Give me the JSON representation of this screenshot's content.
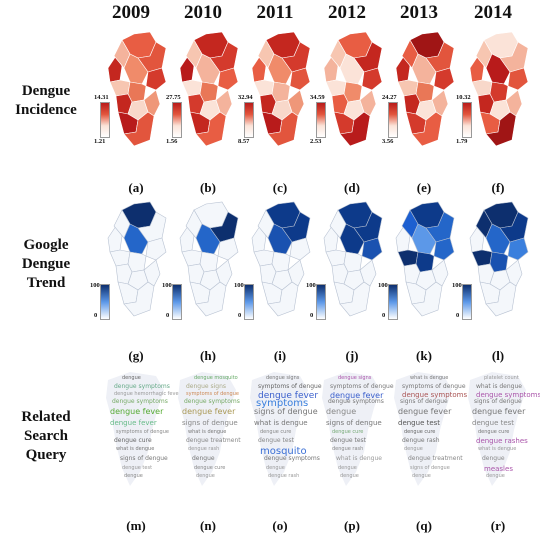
{
  "years": [
    "2009",
    "2010",
    "2011",
    "2012",
    "2013",
    "2014"
  ],
  "row_labels": [
    "Dengue\nIncidence",
    "Google\nDengue\nTrend",
    "Related\nSearch\nQuery"
  ],
  "panel_letters": [
    [
      "(a)",
      "(b)",
      "(c)",
      "(d)",
      "(e)",
      "(f)"
    ],
    [
      "(g)",
      "(h)",
      "(i)",
      "(j)",
      "(k)",
      "(l)"
    ],
    [
      "(m)",
      "(n)",
      "(o)",
      "(p)",
      "(q)",
      "(r)"
    ]
  ],
  "incidence_scales": [
    {
      "max": "14.31",
      "min": "1.21"
    },
    {
      "max": "27.75",
      "min": "1.56"
    },
    {
      "max": "32.94",
      "min": "8.57"
    },
    {
      "max": "34.59",
      "min": "2.53"
    },
    {
      "max": "24.27",
      "min": "3.56"
    },
    {
      "max": "10.32",
      "min": "1.79"
    }
  ],
  "trend_scale": {
    "max": "100",
    "min": "0"
  },
  "colors": {
    "red_dark": "#b81b1b",
    "red_mid": "#e2553d",
    "red_light": "#f4b39c",
    "red_pale": "#fbe3d8",
    "blue_dark": "#0d2f6e",
    "blue_mid": "#2466c9",
    "blue_light": "#5c98e8",
    "blue_pale": "#f4f7fb"
  },
  "incidence_fills": [
    [
      "#c4271f",
      "#e85d43",
      "#f4b39c",
      "#e2553d",
      "#f08b6a",
      "#d43a2c",
      "#f7c6b1",
      "#e97757",
      "#c4271f",
      "#f8d8ca",
      "#b81b1b",
      "#ef9779",
      "#e2553d"
    ],
    [
      "#b81b1b",
      "#c4271f",
      "#f7c6b1",
      "#d43a2c",
      "#f4b39c",
      "#e85d43",
      "#fbe3d8",
      "#e97757",
      "#d43a2c",
      "#fbe3d8",
      "#c4271f",
      "#f4b39c",
      "#e85d43"
    ],
    [
      "#e85d43",
      "#c4271f",
      "#f7c6b1",
      "#d43a2c",
      "#f08b6a",
      "#e2553d",
      "#fbe3d8",
      "#f4b39c",
      "#c4271f",
      "#f8d8ca",
      "#b81b1b",
      "#ef9779",
      "#e2553d"
    ],
    [
      "#f4b39c",
      "#e85d43",
      "#f7c6b1",
      "#c4271f",
      "#fbe3d8",
      "#d43a2c",
      "#fbe3d8",
      "#f08b6a",
      "#e85d43",
      "#fbe3d8",
      "#d43a2c",
      "#f4b39c",
      "#b81b1b"
    ],
    [
      "#c4271f",
      "#a01515",
      "#e85d43",
      "#e2553d",
      "#f4b39c",
      "#d43a2c",
      "#f7c6b1",
      "#e97757",
      "#c4271f",
      "#fbe3d8",
      "#d43a2c",
      "#f4b39c",
      "#e85d43"
    ],
    [
      "#e85d43",
      "#fbe3d8",
      "#f7c6b1",
      "#f4b39c",
      "#b81b1b",
      "#e2553d",
      "#f8d8ca",
      "#d43a2c",
      "#c4271f",
      "#fbe3d8",
      "#e85d43",
      "#f4b39c",
      "#a01515"
    ]
  ],
  "trend_fills": [
    [
      "#f4f7fb",
      "#0d2f6e",
      "#f4f7fb",
      "#f4f7fb",
      "#2466c9",
      "#f4f7fb",
      "#f4f7fb",
      "#f4f7fb",
      "#f4f7fb",
      "#f4f7fb",
      "#f4f7fb",
      "#f4f7fb",
      "#f4f7fb"
    ],
    [
      "#f4f7fb",
      "#f4f7fb",
      "#f4f7fb",
      "#0d2f6e",
      "#2466c9",
      "#f4f7fb",
      "#f4f7fb",
      "#f4f7fb",
      "#f4f7fb",
      "#f4f7fb",
      "#f4f7fb",
      "#f4f7fb",
      "#f4f7fb"
    ],
    [
      "#f4f7fb",
      "#0d3a8a",
      "#f4f7fb",
      "#0d3a8a",
      "#1a52b0",
      "#f4f7fb",
      "#f4f7fb",
      "#f4f7fb",
      "#f4f7fb",
      "#f4f7fb",
      "#f4f7fb",
      "#f4f7fb",
      "#f4f7fb"
    ],
    [
      "#f4f7fb",
      "#0d3a8a",
      "#f4f7fb",
      "#0d3a8a",
      "#0d3a8a",
      "#1a52b0",
      "#f4f7fb",
      "#f4f7fb",
      "#f4f7fb",
      "#f4f7fb",
      "#f4f7fb",
      "#f4f7fb",
      "#f4f7fb"
    ],
    [
      "#f4f7fb",
      "#0d3a8a",
      "#1d5fd0",
      "#2466c9",
      "#5c98e8",
      "#2466c9",
      "#0d2f6e",
      "#0d3a8a",
      "#f4f7fb",
      "#f4f7fb",
      "#f4f7fb",
      "#f4f7fb",
      "#f4f7fb"
    ],
    [
      "#f4f7fb",
      "#0d2f6e",
      "#0d2f6e",
      "#0d3a8a",
      "#2466c9",
      "#3a7fdd",
      "#0d2f6e",
      "#1a52b0",
      "#f4f7fb",
      "#f4f7fb",
      "#f4f7fb",
      "#f4f7fb",
      "#f4f7fb"
    ]
  ],
  "clouds": [
    [
      {
        "t": "dengue",
        "c": "#666"
      },
      {
        "t": "dengue symptoms",
        "c": "#6a8"
      },
      {
        "t": "dengue hemorrhagic fever",
        "c": "#999"
      },
      {
        "t": "dengue symptoms",
        "c": "#7a6"
      },
      {
        "t": "dengue fever",
        "c": "#5a3"
      },
      {
        "t": "dengue fever",
        "c": "#6b8"
      },
      {
        "t": "symptoms of dengue",
        "c": "#888"
      },
      {
        "t": "dengue cure",
        "c": "#666"
      },
      {
        "t": "what is dengue",
        "c": "#777"
      },
      {
        "t": "signs of dengue",
        "c": "#777"
      },
      {
        "t": "dengue test",
        "c": "#999"
      },
      {
        "t": "dengue",
        "c": "#888"
      }
    ],
    [
      {
        "t": "dengue mosquito",
        "c": "#6a6"
      },
      {
        "t": "dengue signs",
        "c": "#aa8"
      },
      {
        "t": "symptoms of dengue",
        "c": "#c85"
      },
      {
        "t": "dengue symptoms",
        "c": "#7a6"
      },
      {
        "t": "dengue fever",
        "c": "#a95"
      },
      {
        "t": "signs of dengue",
        "c": "#888"
      },
      {
        "t": "what is dengue",
        "c": "#777"
      },
      {
        "t": "dengue treatment",
        "c": "#888"
      },
      {
        "t": "dengue rash",
        "c": "#999"
      },
      {
        "t": "dengue",
        "c": "#777"
      },
      {
        "t": "dengue cure",
        "c": "#888"
      },
      {
        "t": "dengue",
        "c": "#999"
      }
    ],
    [
      {
        "t": "dengue signs",
        "c": "#777"
      },
      {
        "t": "symptoms of dengue",
        "c": "#666"
      },
      {
        "t": "dengue fever",
        "c": "#3a5fcc"
      },
      {
        "t": "symptoms",
        "c": "#3a7fdd"
      },
      {
        "t": "signs of dengue",
        "c": "#777"
      },
      {
        "t": "what is dengue",
        "c": "#777"
      },
      {
        "t": "dengue cure",
        "c": "#888"
      },
      {
        "t": "dengue test",
        "c": "#888"
      },
      {
        "t": "mosquito",
        "c": "#3a6fd5"
      },
      {
        "t": "dengue symptoms",
        "c": "#777"
      },
      {
        "t": "dengue",
        "c": "#999"
      },
      {
        "t": "dengue rash",
        "c": "#999"
      }
    ],
    [
      {
        "t": "dengue signs",
        "c": "#a5a"
      },
      {
        "t": "symptoms of dengue",
        "c": "#777"
      },
      {
        "t": "dengue fever",
        "c": "#3a5fcc"
      },
      {
        "t": "dengue symptoms",
        "c": "#777"
      },
      {
        "t": "dengue",
        "c": "#888"
      },
      {
        "t": "signs of dengue",
        "c": "#777"
      },
      {
        "t": "dengue cure",
        "c": "#7a7"
      },
      {
        "t": "dengue test",
        "c": "#777"
      },
      {
        "t": "dengue rash",
        "c": "#888"
      },
      {
        "t": "what is dengue",
        "c": "#999"
      },
      {
        "t": "dengue",
        "c": "#999"
      },
      {
        "t": "dengue",
        "c": "#999"
      }
    ],
    [
      {
        "t": "what is dengue",
        "c": "#777"
      },
      {
        "t": "symptoms of dengue",
        "c": "#777"
      },
      {
        "t": "dengue symptoms",
        "c": "#a55"
      },
      {
        "t": "signs of dengue",
        "c": "#777"
      },
      {
        "t": "dengue fever",
        "c": "#777"
      },
      {
        "t": "dengue test",
        "c": "#555"
      },
      {
        "t": "dengue cure",
        "c": "#666"
      },
      {
        "t": "dengue rash",
        "c": "#777"
      },
      {
        "t": "dengue",
        "c": "#999"
      },
      {
        "t": "dengue treatment",
        "c": "#888"
      },
      {
        "t": "signs of dengue",
        "c": "#999"
      },
      {
        "t": "dengue",
        "c": "#999"
      }
    ],
    [
      {
        "t": "platelet count",
        "c": "#999"
      },
      {
        "t": "what is dengue",
        "c": "#777"
      },
      {
        "t": "dengue symptoms",
        "c": "#a5a"
      },
      {
        "t": "signs of dengue",
        "c": "#777"
      },
      {
        "t": "dengue fever",
        "c": "#777"
      },
      {
        "t": "dengue test",
        "c": "#888"
      },
      {
        "t": "dengue cure",
        "c": "#777"
      },
      {
        "t": "dengue rashes",
        "c": "#a5a"
      },
      {
        "t": "what is dengue",
        "c": "#999"
      },
      {
        "t": "dengue",
        "c": "#888"
      },
      {
        "t": "measles",
        "c": "#a5a"
      },
      {
        "t": "dengue",
        "c": "#999"
      }
    ]
  ]
}
